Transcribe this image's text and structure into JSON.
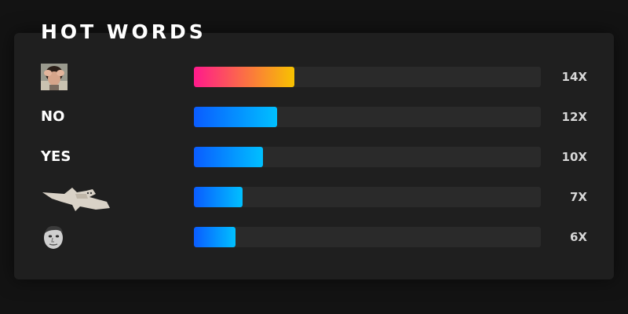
{
  "title": "HOT WORDS",
  "colors": {
    "hot_start": "#ff1a8c",
    "hot_end": "#f7c200",
    "cool_start": "#0a5cff",
    "cool_end": "#00c0ff"
  },
  "rows": [
    {
      "kind": "emote",
      "icon": "facepalm-emote-icon",
      "count": "14X",
      "fraction": 0.29,
      "style": "hot"
    },
    {
      "kind": "text",
      "label": "NO",
      "count": "12X",
      "fraction": 0.24,
      "style": "cool"
    },
    {
      "kind": "text",
      "label": "YES",
      "count": "10X",
      "fraction": 0.2,
      "style": "cool"
    },
    {
      "kind": "emote",
      "icon": "flying-cat-emote-icon",
      "count": "7X",
      "fraction": 0.14,
      "style": "cool"
    },
    {
      "kind": "emote",
      "icon": "kappa-face-emote-icon",
      "count": "6X",
      "fraction": 0.12,
      "style": "cool"
    }
  ]
}
